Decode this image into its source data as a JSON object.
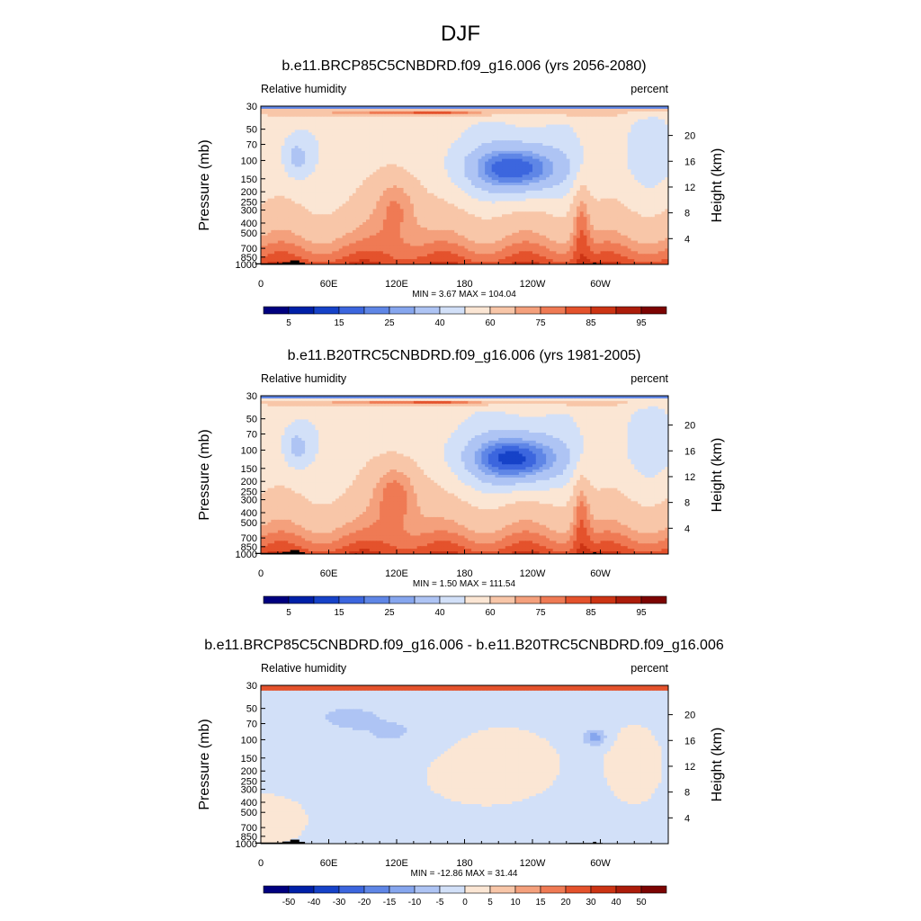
{
  "figure": {
    "title": "DJF"
  },
  "chart_data": [
    {
      "type": "heatmap",
      "title": "b.e11.BRCP85C5CNBDRD.f09_g16.006 (yrs 2056-2080)",
      "left_label": "Relative humidity",
      "right_label": "percent",
      "ylabel": "Pressure (mb)",
      "y2label": "Height (km)",
      "x_ticks": [
        "0",
        "60E",
        "120E",
        "180",
        "120W",
        "60W"
      ],
      "x_tick_lon": [
        0,
        60,
        120,
        180,
        240,
        300
      ],
      "xlim": [
        0,
        360
      ],
      "y_ticks": [
        "30",
        "50",
        "70",
        "100",
        "150",
        "200",
        "250",
        "300",
        "400",
        "500",
        "700",
        "850",
        "1000"
      ],
      "y_tick_values": [
        30,
        50,
        70,
        100,
        150,
        200,
        250,
        300,
        400,
        500,
        700,
        850,
        1000
      ],
      "ylim": [
        1000,
        30
      ],
      "height_ticks": [
        "20",
        "16",
        "12",
        "8",
        "4"
      ],
      "height_values": [
        20,
        16,
        12,
        8,
        4
      ],
      "stats": "MIN =   3.67  MAX = 104.04",
      "min": 3.67,
      "max": 104.04,
      "colorbar": {
        "labels": [
          "5",
          "15",
          "25",
          "40",
          "60",
          "75",
          "85",
          "95"
        ],
        "colors": [
          "#00007f",
          "#0020a8",
          "#1642c8",
          "#3c66de",
          "#5f86e6",
          "#86a6ee",
          "#aec4f4",
          "#d2e0f8",
          "#fbe6d4",
          "#f8c6a8",
          "#f4a07c",
          "#ef7a54",
          "#e4522c",
          "#cc3414",
          "#ac1c0a",
          "#7c0402"
        ]
      }
    },
    {
      "type": "heatmap",
      "title": "b.e11.B20TRC5CNBDRD.f09_g16.006 (yrs 1981-2005)",
      "left_label": "Relative humidity",
      "right_label": "percent",
      "ylabel": "Pressure (mb)",
      "y2label": "Height (km)",
      "x_ticks": [
        "0",
        "60E",
        "120E",
        "180",
        "120W",
        "60W"
      ],
      "x_tick_lon": [
        0,
        60,
        120,
        180,
        240,
        300
      ],
      "xlim": [
        0,
        360
      ],
      "y_ticks": [
        "30",
        "50",
        "70",
        "100",
        "150",
        "200",
        "250",
        "300",
        "400",
        "500",
        "700",
        "850",
        "1000"
      ],
      "y_tick_values": [
        30,
        50,
        70,
        100,
        150,
        200,
        250,
        300,
        400,
        500,
        700,
        850,
        1000
      ],
      "ylim": [
        1000,
        30
      ],
      "height_ticks": [
        "20",
        "16",
        "12",
        "8",
        "4"
      ],
      "height_values": [
        20,
        16,
        12,
        8,
        4
      ],
      "stats": "MIN =   1.50  MAX = 111.54",
      "min": 1.5,
      "max": 111.54,
      "colorbar": {
        "labels": [
          "5",
          "15",
          "25",
          "40",
          "60",
          "75",
          "85",
          "95"
        ],
        "colors": [
          "#00007f",
          "#0020a8",
          "#1642c8",
          "#3c66de",
          "#5f86e6",
          "#86a6ee",
          "#aec4f4",
          "#d2e0f8",
          "#fbe6d4",
          "#f8c6a8",
          "#f4a07c",
          "#ef7a54",
          "#e4522c",
          "#cc3414",
          "#ac1c0a",
          "#7c0402"
        ]
      }
    },
    {
      "type": "heatmap",
      "title": "b.e11.BRCP85C5CNBDRD.f09_g16.006 - b.e11.B20TRC5CNBDRD.f09_g16.006",
      "left_label": "Relative humidity",
      "right_label": "percent",
      "ylabel": "Pressure (mb)",
      "y2label": "Height (km)",
      "x_ticks": [
        "0",
        "60E",
        "120E",
        "180",
        "120W",
        "60W"
      ],
      "x_tick_lon": [
        0,
        60,
        120,
        180,
        240,
        300
      ],
      "xlim": [
        0,
        360
      ],
      "y_ticks": [
        "30",
        "50",
        "70",
        "100",
        "150",
        "200",
        "250",
        "300",
        "400",
        "500",
        "700",
        "850",
        "1000"
      ],
      "y_tick_values": [
        30,
        50,
        70,
        100,
        150,
        200,
        250,
        300,
        400,
        500,
        700,
        850,
        1000
      ],
      "ylim": [
        1000,
        30
      ],
      "height_ticks": [
        "20",
        "16",
        "12",
        "8",
        "4"
      ],
      "height_values": [
        20,
        16,
        12,
        8,
        4
      ],
      "stats": "MIN = -12.86  MAX =  31.44",
      "min": -12.86,
      "max": 31.44,
      "colorbar": {
        "labels": [
          "-50",
          "-40",
          "-30",
          "-20",
          "-15",
          "-10",
          "-5",
          "0",
          "5",
          "10",
          "15",
          "20",
          "30",
          "40",
          "50"
        ],
        "colors": [
          "#00007f",
          "#0020a8",
          "#1642c8",
          "#3c66de",
          "#5f86e6",
          "#86a6ee",
          "#aec4f4",
          "#d2e0f8",
          "#fbe6d4",
          "#f8c6a8",
          "#f4a07c",
          "#ef7a54",
          "#e4522c",
          "#cc3414",
          "#ac1c0a",
          "#7c0402"
        ]
      }
    }
  ]
}
